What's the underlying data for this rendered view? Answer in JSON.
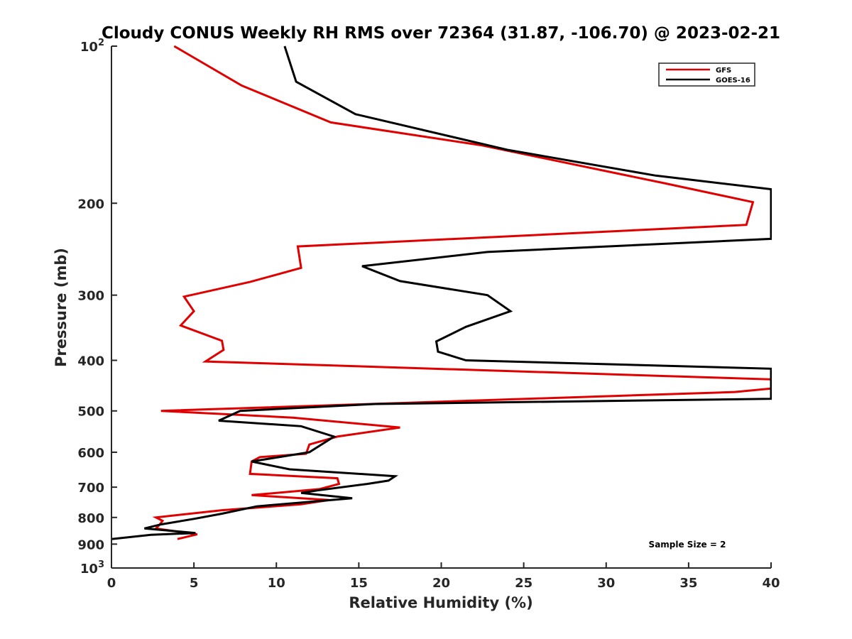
{
  "chart_data": {
    "type": "line",
    "title": "Cloudy CONUS Weekly RH RMS over 72364 (31.87, -106.70) @ 2023-02-21",
    "xlabel": "Relative Humidity (%)",
    "ylabel": "Pressure (mb)",
    "xlim": [
      0,
      40
    ],
    "ylim": [
      100,
      1000
    ],
    "y_scale": "log",
    "y_reversed": true,
    "grid": false,
    "legend_position": "top-right",
    "x_ticks": [
      {
        "value": 0,
        "label": "0"
      },
      {
        "value": 5,
        "label": "5"
      },
      {
        "value": 10,
        "label": "10"
      },
      {
        "value": 15,
        "label": "15"
      },
      {
        "value": 20,
        "label": "20"
      },
      {
        "value": 25,
        "label": "25"
      },
      {
        "value": 30,
        "label": "30"
      },
      {
        "value": 35,
        "label": "35"
      },
      {
        "value": 40,
        "label": "40"
      }
    ],
    "y_ticks": [
      {
        "value": 100,
        "base": "10",
        "exp": "2"
      },
      {
        "value": 200,
        "label": "200"
      },
      {
        "value": 300,
        "label": "300"
      },
      {
        "value": 400,
        "label": "400"
      },
      {
        "value": 500,
        "label": "500"
      },
      {
        "value": 600,
        "label": "600"
      },
      {
        "value": 700,
        "label": "700"
      },
      {
        "value": 800,
        "label": "800"
      },
      {
        "value": 900,
        "label": "900"
      },
      {
        "value": 1000,
        "base": "10",
        "exp": "3"
      }
    ],
    "annotation": "Sample Size = 2",
    "series": [
      {
        "name": "GFS",
        "color": "#e00000",
        "points": [
          [
            3.8,
            100
          ],
          [
            7.9,
            119
          ],
          [
            13.3,
            140
          ],
          [
            22.5,
            155
          ],
          [
            33.5,
            183
          ],
          [
            38.9,
            199
          ],
          [
            38.5,
            220
          ],
          [
            11.3,
            242
          ],
          [
            11.5,
            266
          ],
          [
            8.4,
            283
          ],
          [
            4.4,
            302
          ],
          [
            5.0,
            322
          ],
          [
            4.2,
            343
          ],
          [
            6.7,
            367
          ],
          [
            6.8,
            382
          ],
          [
            5.7,
            402
          ],
          [
            40,
            435
          ],
          [
            40,
            453
          ],
          [
            37.8,
            460
          ],
          [
            3.0,
            500
          ],
          [
            11,
            515
          ],
          [
            17.5,
            538
          ],
          [
            13.7,
            560
          ],
          [
            12,
            580
          ],
          [
            11.8,
            604
          ],
          [
            9,
            613
          ],
          [
            8.5,
            625
          ],
          [
            8.4,
            660
          ],
          [
            13.7,
            673
          ],
          [
            13.8,
            690
          ],
          [
            12.6,
            706
          ],
          [
            8.5,
            725
          ],
          [
            13.2,
            741
          ],
          [
            11.5,
            755
          ],
          [
            6.7,
            775
          ],
          [
            2.7,
            800
          ],
          [
            3.1,
            812
          ],
          [
            2.9,
            827
          ],
          [
            2.7,
            840
          ],
          [
            5.2,
            862
          ],
          [
            4,
            880
          ]
        ]
      },
      {
        "name": "GOES-16",
        "color": "#000000",
        "points": [
          [
            10.5,
            100
          ],
          [
            11.2,
            117
          ],
          [
            14.8,
            135
          ],
          [
            24,
            158
          ],
          [
            33,
            177
          ],
          [
            40,
            188
          ],
          [
            40,
            234
          ],
          [
            22.8,
            248
          ],
          [
            15.2,
            264
          ],
          [
            17.5,
            282
          ],
          [
            22.8,
            300
          ],
          [
            24.2,
            322
          ],
          [
            21.5,
            345
          ],
          [
            19.7,
            368
          ],
          [
            19.8,
            385
          ],
          [
            21.5,
            400
          ],
          [
            40,
            415
          ],
          [
            40,
            474
          ],
          [
            16,
            485
          ],
          [
            7.8,
            500
          ],
          [
            6.5,
            522
          ],
          [
            11.5,
            535
          ],
          [
            13.5,
            560
          ],
          [
            12,
            600
          ],
          [
            8.5,
            625
          ],
          [
            10.8,
            647
          ],
          [
            17.2,
            667
          ],
          [
            16.8,
            680
          ],
          [
            15.5,
            690
          ],
          [
            12.5,
            710
          ],
          [
            11.5,
            718
          ],
          [
            14.6,
            735
          ],
          [
            8.8,
            762
          ],
          [
            6.7,
            787
          ],
          [
            5,
            805
          ],
          [
            3,
            825
          ],
          [
            2,
            840
          ],
          [
            5.1,
            857
          ],
          [
            2.4,
            864
          ],
          [
            0,
            880
          ]
        ]
      }
    ]
  }
}
